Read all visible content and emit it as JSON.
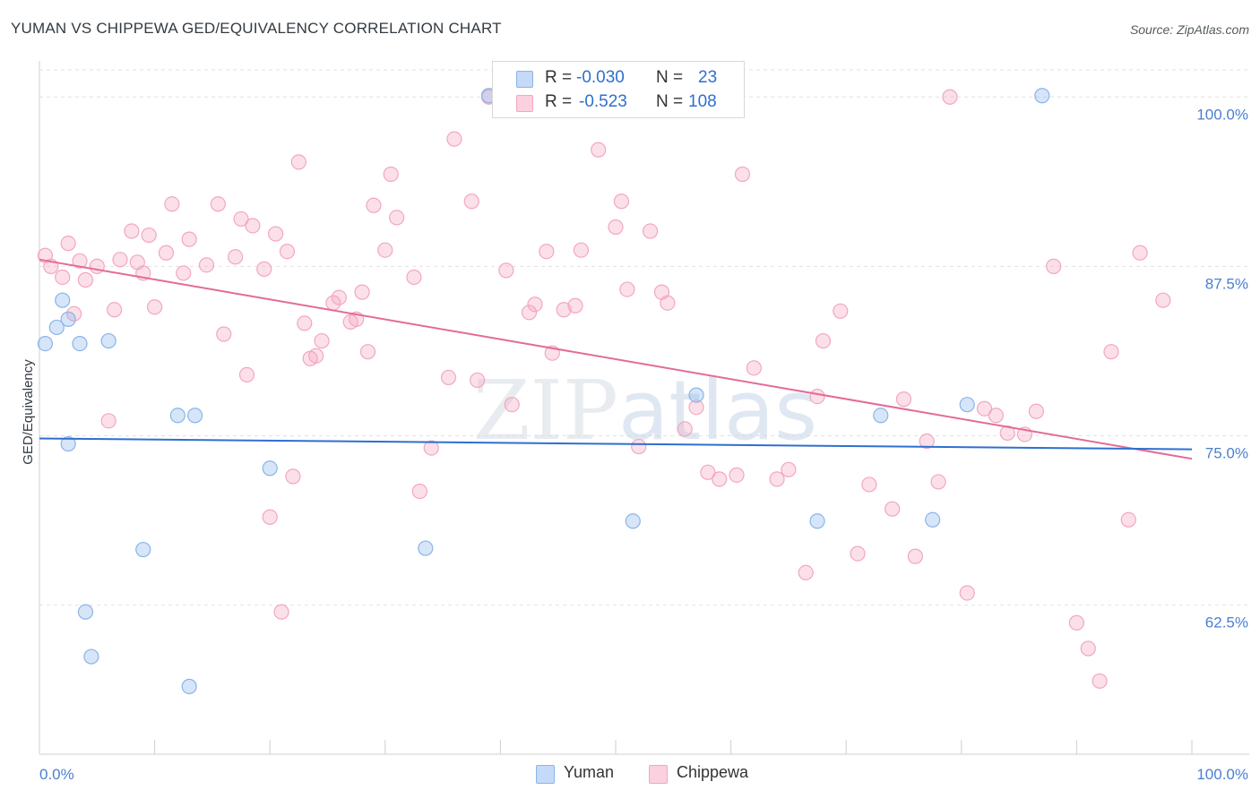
{
  "title": "YUMAN VS CHIPPEWA GED/EQUIVALENCY CORRELATION CHART",
  "source": "Source: ZipAtlas.com",
  "colors": {
    "yuman": "#8ab4ea",
    "yuman_line": "#2f6fce",
    "chippewa": "#f3a6c0",
    "chippewa_line": "#e36b97",
    "tick": "#4a7fd0"
  },
  "legend": {
    "yuman": {
      "r_label": "R =",
      "r_value": "-0.030",
      "n_label": "N =",
      "n_value": "23"
    },
    "chippewa": {
      "r_label": "R =",
      "r_value": "-0.523",
      "n_label": "N =",
      "n_value": "108"
    }
  },
  "chart_data": {
    "type": "scatter",
    "title": "YUMAN VS CHIPPEWA GED/EQUIVALENCY CORRELATION CHART",
    "xlabel": "",
    "ylabel": "GED/Equivalency",
    "xlim": [
      0,
      100
    ],
    "ylim": [
      51.5,
      102
    ],
    "x_tick_labels": [
      "0.0%",
      "100.0%"
    ],
    "y_ticks": [
      62.5,
      75.0,
      87.5,
      100.0
    ],
    "y_tick_labels": [
      "62.5%",
      "75.0%",
      "87.5%",
      "100.0%"
    ],
    "grid": true,
    "watermark": "ZIPatlas",
    "series": [
      {
        "name": "Yuman",
        "trend": {
          "x": [
            0,
            100
          ],
          "y": [
            74.8,
            74.0
          ]
        },
        "x": [
          0.5,
          1.5,
          2.0,
          2.5,
          3.5,
          4.0,
          4.5,
          6.0,
          2.5,
          9.0,
          13.0,
          13.5,
          12.0,
          20.0,
          33.5,
          39.0,
          51.5,
          57.0,
          67.5,
          73.0,
          77.5,
          80.5,
          87.0
        ],
        "y": [
          81.8,
          83.0,
          85.0,
          83.6,
          81.8,
          62.0,
          58.7,
          82.0,
          74.4,
          66.6,
          56.5,
          76.5,
          76.5,
          72.6,
          66.7,
          100.1,
          68.7,
          78.0,
          68.7,
          76.5,
          68.8,
          77.3,
          100.1
        ]
      },
      {
        "name": "Chippewa",
        "trend": {
          "x": [
            0,
            100
          ],
          "y": [
            88.0,
            73.3
          ]
        },
        "x": [
          0.5,
          1.0,
          2.0,
          2.5,
          3.0,
          3.5,
          4.0,
          5.0,
          6.0,
          6.5,
          7.0,
          8.0,
          8.5,
          9.0,
          9.5,
          10.0,
          11.0,
          11.5,
          12.5,
          13.0,
          14.5,
          15.5,
          16.0,
          17.0,
          17.5,
          18.0,
          18.5,
          19.5,
          20.0,
          20.5,
          21.0,
          21.5,
          22.0,
          22.5,
          23.0,
          23.5,
          24.0,
          24.5,
          25.5,
          26.0,
          27.0,
          27.5,
          28.0,
          28.5,
          29.0,
          30.0,
          30.5,
          31.0,
          32.5,
          33.0,
          34.0,
          35.5,
          36.0,
          37.5,
          38.0,
          39.0,
          40.5,
          41.0,
          42.5,
          43.0,
          44.0,
          44.5,
          45.5,
          46.5,
          47.0,
          48.5,
          50.0,
          50.5,
          51.0,
          52.0,
          53.0,
          54.0,
          54.5,
          56.0,
          57.0,
          58.0,
          59.0,
          60.5,
          61.0,
          62.0,
          64.0,
          65.0,
          66.5,
          67.5,
          68.0,
          69.5,
          71.0,
          72.0,
          74.0,
          75.0,
          76.0,
          77.0,
          78.0,
          79.0,
          80.5,
          82.0,
          83.0,
          84.0,
          85.5,
          86.5,
          88.0,
          90.0,
          91.0,
          92.0,
          93.0,
          94.5,
          95.5,
          97.5
        ],
        "y": [
          88.3,
          87.5,
          86.7,
          89.2,
          84.0,
          87.9,
          86.5,
          87.5,
          76.1,
          84.3,
          88.0,
          90.1,
          87.8,
          87.0,
          89.8,
          84.5,
          88.5,
          92.1,
          87.0,
          89.5,
          87.6,
          92.1,
          82.5,
          88.2,
          91.0,
          79.5,
          90.5,
          87.3,
          69.0,
          89.9,
          62.0,
          88.6,
          72.0,
          95.2,
          83.3,
          80.7,
          80.9,
          82.0,
          84.8,
          85.2,
          83.4,
          83.6,
          85.6,
          81.2,
          92.0,
          88.7,
          94.3,
          91.1,
          86.7,
          70.9,
          74.1,
          79.3,
          96.9,
          92.3,
          79.1,
          100.0,
          87.2,
          77.3,
          84.1,
          84.7,
          88.6,
          81.1,
          84.3,
          84.6,
          88.7,
          96.1,
          90.4,
          92.3,
          85.8,
          74.2,
          90.1,
          85.6,
          84.8,
          75.5,
          77.1,
          72.3,
          71.8,
          72.1,
          94.3,
          80.0,
          71.8,
          72.5,
          64.9,
          77.9,
          82.0,
          84.2,
          66.3,
          71.4,
          69.6,
          77.7,
          66.1,
          74.6,
          71.6,
          100.0,
          63.4,
          77.0,
          76.5,
          75.2,
          75.1,
          76.8,
          87.5,
          61.2,
          59.3,
          56.9,
          81.2,
          68.8,
          88.5,
          85.0
        ]
      }
    ]
  },
  "bottom_legend": {
    "yuman": "Yuman",
    "chippewa": "Chippewa"
  }
}
